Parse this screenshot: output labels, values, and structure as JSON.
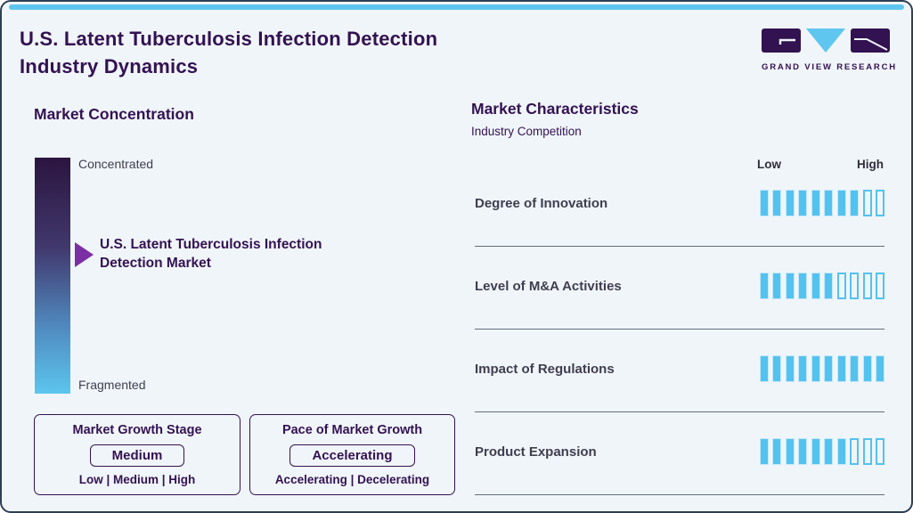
{
  "header": {
    "title_line1": "U.S. Latent Tuberculosis Infection Detection",
    "title_line2": "Industry Dynamics",
    "logo_text": "GRAND VIEW RESEARCH"
  },
  "market_concentration": {
    "heading": "Market Concentration",
    "top_label": "Concentrated",
    "bottom_label": "Fragmented",
    "marker_label_line1": "U.S. Latent Tuberculosis Infection",
    "marker_label_line2": "Detection Market"
  },
  "growth_stage_box": {
    "title": "Market Growth Stage",
    "value": "Medium",
    "options": "Low | Medium | High"
  },
  "pace_box": {
    "title": "Pace of Market Growth",
    "value": "Accelerating",
    "options": "Accelerating | Decelerating"
  },
  "market_characteristics": {
    "heading": "Market Characteristics",
    "subheading": "Industry Competition",
    "scale_low": "Low",
    "scale_high": "High",
    "rows": [
      {
        "label": "Degree of Innovation",
        "filled": 8,
        "total": 10
      },
      {
        "label": "Level of M&A Activities",
        "filled": 6,
        "total": 10
      },
      {
        "label": "Impact of Regulations",
        "filled": 10,
        "total": 10
      },
      {
        "label": "Product Expansion",
        "filled": 7,
        "total": 10
      }
    ]
  },
  "chart_data": {
    "type": "bar",
    "title": "U.S. Latent Tuberculosis Infection Detection Industry Dynamics",
    "subtitle": "Market Characteristics - Industry Competition",
    "categories": [
      "Degree of Innovation",
      "Level of M&A Activities",
      "Impact of Regulations",
      "Product Expansion"
    ],
    "values": [
      8,
      6,
      10,
      7
    ],
    "scale": {
      "min": 0,
      "max": 10,
      "min_label": "Low",
      "max_label": "High"
    },
    "annotations": {
      "market_concentration": {
        "axis_top": "Concentrated",
        "axis_bottom": "Fragmented",
        "marker": "U.S. Latent Tuberculosis Infection Detection Market",
        "marker_position": "upper-middle"
      },
      "market_growth_stage": {
        "value": "Medium",
        "options": [
          "Low",
          "Medium",
          "High"
        ]
      },
      "pace_of_market_growth": {
        "value": "Accelerating",
        "options": [
          "Accelerating",
          "Decelerating"
        ]
      }
    }
  },
  "colors": {
    "card_bg": "#f0f5fa",
    "border_navy": "#2e3f55",
    "accent_blue": "#5ec6ef",
    "dark_purple": "#331251",
    "arrow_purple": "#7b2fa5",
    "tick_blue": "#54c2ef",
    "tick_halo": "#c3e8f9",
    "text_dark": "#3f3e4f",
    "separator": "#4a5568"
  }
}
